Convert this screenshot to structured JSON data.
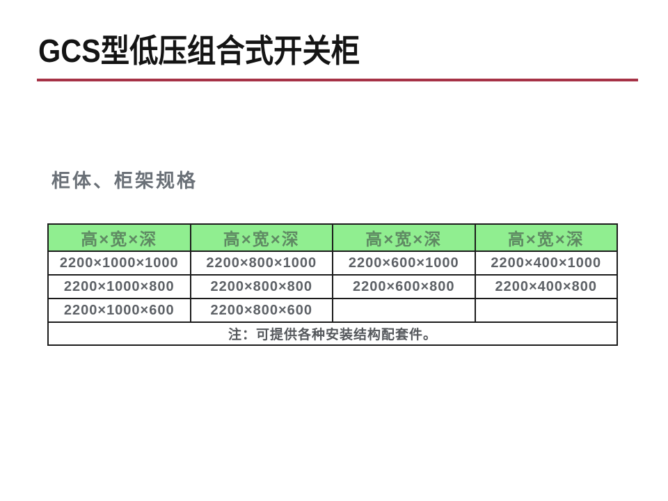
{
  "title": "GCS型低压组合式开关柜",
  "section_heading": "柜体、柜架规格",
  "colors": {
    "accent_rule": "#a63246",
    "table_header_bg": "#90ee90",
    "table_header_text": "#5f8a63",
    "cell_text": "#5d6166",
    "heading_text": "#6a7077"
  },
  "spec_table": {
    "headers": [
      "高×宽×深",
      "高×宽×深",
      "高×宽×深",
      "高×宽×深"
    ],
    "rows": [
      [
        "2200×1000×1000",
        "2200×800×1000",
        "2200×600×1000",
        "2200×400×1000"
      ],
      [
        "2200×1000×800",
        "2200×800×800",
        "2200×600×800",
        "2200×400×800"
      ],
      [
        "2200×1000×600",
        "2200×800×600",
        "",
        ""
      ]
    ],
    "note": "注：可提供各种安装结构配套件。"
  }
}
